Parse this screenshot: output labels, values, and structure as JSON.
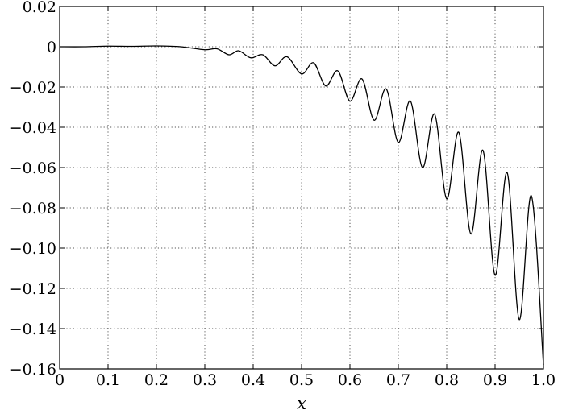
{
  "chart_data": {
    "type": "line",
    "xlabel": "x",
    "ylabel": "",
    "title": "",
    "xlim": [
      0,
      1.0
    ],
    "ylim": [
      -0.16,
      0.02
    ],
    "grid": true,
    "xticks": [
      0,
      0.1,
      0.2,
      0.3,
      0.4,
      0.5,
      0.6,
      0.7,
      0.8,
      0.9,
      1.0
    ],
    "xtick_labels": [
      "0",
      "0.1",
      "0.2",
      "0.3",
      "0.4",
      "0.5",
      "0.6",
      "0.7",
      "0.8",
      "0.9",
      "1.0"
    ],
    "yticks": [
      0.02,
      0,
      -0.02,
      -0.04,
      -0.06,
      -0.08,
      -0.1,
      -0.12,
      -0.14,
      -0.16
    ],
    "ytick_labels": [
      "0.02",
      "0",
      "−0.02",
      "−0.04",
      "−0.06",
      "−0.08",
      "−0.10",
      "−0.12",
      "−0.14",
      "−0.16"
    ],
    "series": [
      {
        "x": [
          0,
          0.05,
          0.1,
          0.15,
          0.2,
          0.25,
          0.3,
          0.325,
          0.35,
          0.37,
          0.395,
          0.42,
          0.445,
          0.47,
          0.5,
          0.525,
          0.55,
          0.575,
          0.6,
          0.625,
          0.65,
          0.675,
          0.7,
          0.725,
          0.75,
          0.775,
          0.8,
          0.825,
          0.85,
          0.875,
          0.9,
          0.925,
          0.95,
          0.975,
          1.0
        ],
        "y": [
          0,
          0,
          0.0003,
          0.0002,
          0.0004,
          0,
          -0.0015,
          -0.001,
          -0.004,
          -0.002,
          -0.0055,
          -0.004,
          -0.0095,
          -0.005,
          -0.0135,
          -0.008,
          -0.0195,
          -0.012,
          -0.027,
          -0.016,
          -0.0365,
          -0.021,
          -0.0475,
          -0.027,
          -0.06,
          -0.0335,
          -0.0755,
          -0.0425,
          -0.093,
          -0.0515,
          -0.1135,
          -0.0625,
          -0.1355,
          -0.074,
          -0.158
        ]
      }
    ],
    "line_color": "#000000"
  }
}
